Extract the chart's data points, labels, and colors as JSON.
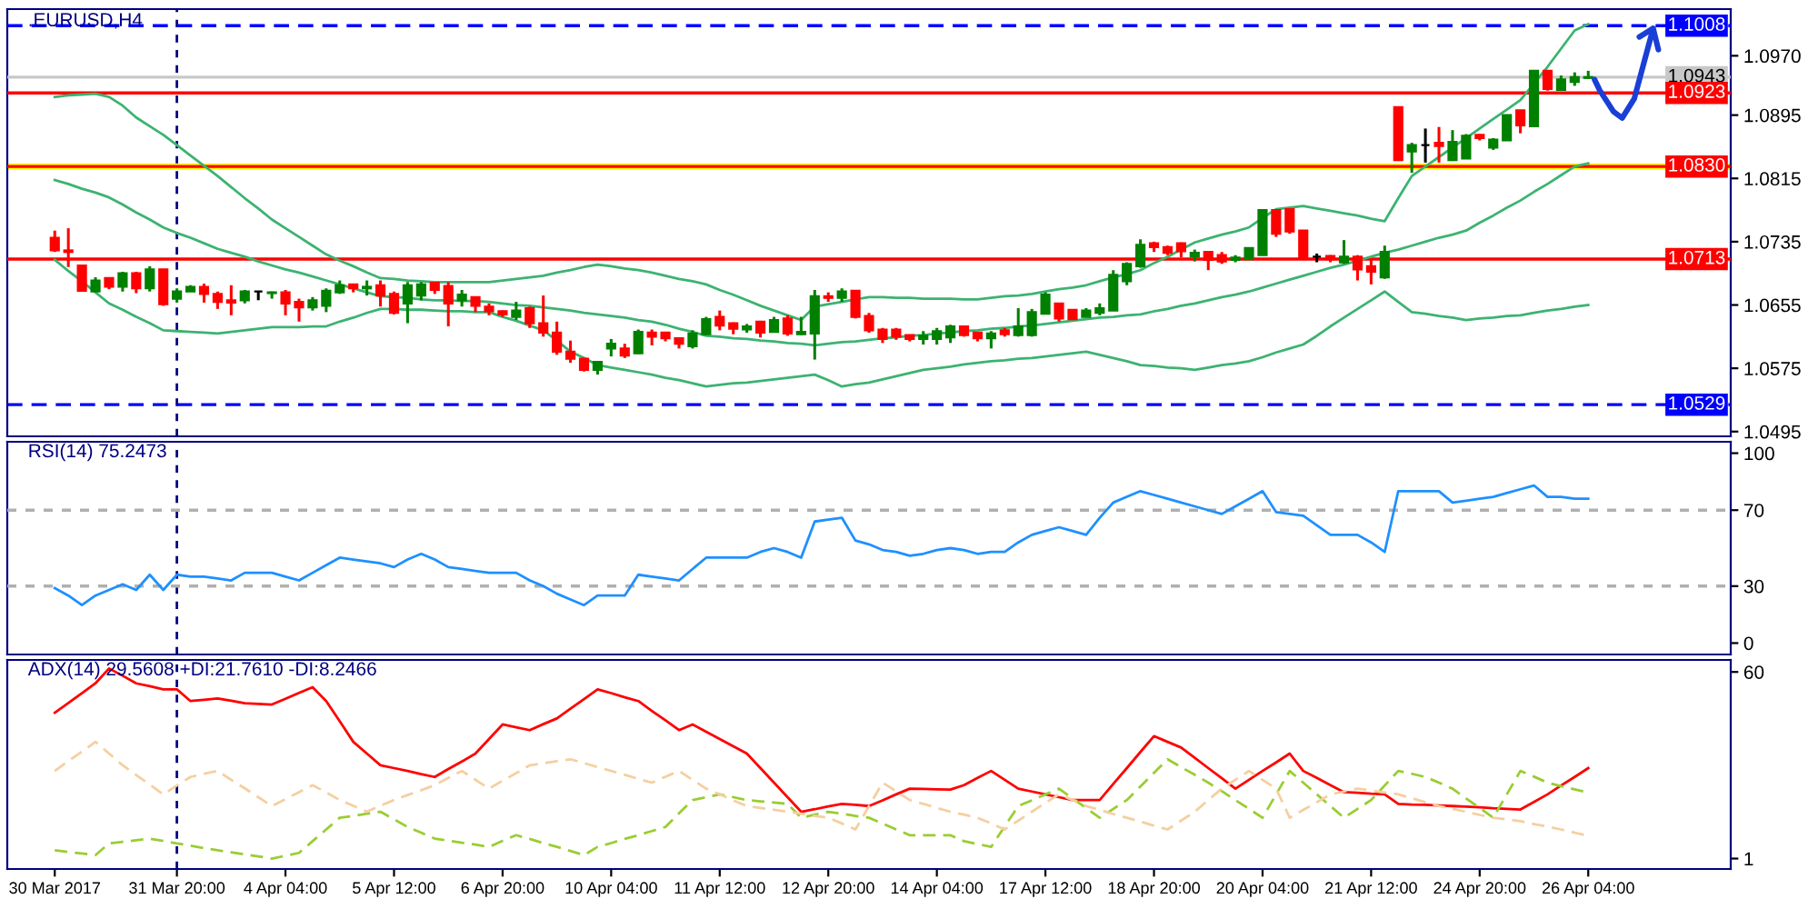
{
  "chart_data": [
    {
      "type": "candlestick",
      "title": ".EURUSD,H4",
      "categories": [
        null,
        null,
        null,
        null,
        null,
        null,
        null,
        null,
        null,
        null,
        null,
        null,
        null,
        null,
        null,
        null,
        null,
        null,
        null,
        null,
        null,
        null,
        null,
        null,
        null,
        null,
        null,
        null,
        null,
        null,
        null,
        null,
        null,
        null,
        null,
        null,
        null,
        null,
        null,
        null,
        null,
        null,
        null,
        null,
        null,
        null,
        null,
        null,
        null,
        null,
        null,
        null,
        null,
        null,
        null,
        null,
        null,
        null,
        null,
        null,
        null,
        null,
        null,
        null,
        null,
        null,
        null,
        null,
        null,
        null,
        null,
        null,
        null,
        null,
        null,
        null,
        null,
        null,
        null,
        null,
        null,
        null,
        null,
        null,
        null,
        null,
        null,
        null,
        null,
        null,
        null,
        null,
        null,
        null,
        null,
        null,
        null,
        null,
        null,
        null,
        null,
        null,
        null,
        null,
        null,
        null,
        null,
        null,
        null,
        null,
        null,
        null,
        null,
        null
      ],
      "ohlc": [
        [
          1.074,
          1.0749,
          1.0722,
          1.0724
        ],
        [
          1.0724,
          1.0752,
          1.0703,
          1.0722
        ],
        [
          1.0705,
          1.0706,
          1.0672,
          1.0673
        ],
        [
          1.0672,
          1.069,
          1.0672,
          1.0686
        ],
        [
          1.0689,
          1.069,
          1.0675,
          1.0678
        ],
        [
          1.0678,
          1.0697,
          1.0672,
          1.0695
        ],
        [
          1.0695,
          1.0697,
          1.067,
          1.0676
        ],
        [
          1.0676,
          1.0704,
          1.0672,
          1.07
        ],
        [
          1.07,
          1.07,
          1.0654,
          1.0656
        ],
        [
          1.0663,
          1.0676,
          1.0658,
          1.0672
        ],
        [
          1.0672,
          1.068,
          1.0672,
          1.0678
        ],
        [
          1.0678,
          1.0682,
          1.0658,
          1.0669
        ],
        [
          1.0669,
          1.0672,
          1.065,
          1.0659
        ],
        [
          1.0661,
          1.068,
          1.0642,
          1.0658
        ],
        [
          1.0661,
          1.0674,
          1.0657,
          1.0672
        ],
        [
          1.0672,
          1.0672,
          1.0661,
          1.0672
        ],
        [
          1.067,
          1.0672,
          1.0663,
          1.0671
        ],
        [
          1.0671,
          1.0674,
          1.0642,
          1.0657
        ],
        [
          1.0659,
          1.0663,
          1.0634,
          1.0652
        ],
        [
          1.0652,
          1.0665,
          1.0648,
          1.0661
        ],
        [
          1.0654,
          1.0676,
          1.0646,
          1.0673
        ],
        [
          1.0671,
          1.0686,
          1.0669,
          1.068
        ],
        [
          1.0681,
          1.0681,
          1.0671,
          1.0676
        ],
        [
          1.0676,
          1.0686,
          1.0667,
          1.0678
        ],
        [
          1.068,
          1.0686,
          1.0653,
          1.0667
        ],
        [
          1.0669,
          1.0672,
          1.0643,
          1.0645
        ],
        [
          1.0657,
          1.0684,
          1.0632,
          1.068
        ],
        [
          1.0667,
          1.0684,
          1.0661,
          1.0681
        ],
        [
          1.0683,
          1.0683,
          1.0669,
          1.0674
        ],
        [
          1.0679,
          1.0684,
          1.0628,
          1.0657
        ],
        [
          1.0661,
          1.0674,
          1.0653,
          1.0668
        ],
        [
          1.0665,
          1.0665,
          1.0646,
          1.0654
        ],
        [
          1.0653,
          1.0657,
          1.0642,
          1.0647
        ],
        [
          1.0647,
          1.0648,
          1.064,
          1.0643
        ],
        [
          1.064,
          1.0659,
          1.0636,
          1.0648
        ],
        [
          1.0651,
          1.0653,
          1.0626,
          1.0632
        ],
        [
          1.0632,
          1.0667,
          1.0615,
          1.062
        ],
        [
          1.062,
          1.0634,
          1.0592,
          1.0596
        ],
        [
          1.0596,
          1.061,
          1.0582,
          1.0587
        ],
        [
          1.0587,
          1.0588,
          1.0571,
          1.0573
        ],
        [
          1.0573,
          1.0584,
          1.0567,
          1.0583
        ],
        [
          1.06,
          1.0612,
          1.059,
          1.0606
        ],
        [
          1.06,
          1.0606,
          1.0588,
          1.0591
        ],
        [
          1.0594,
          1.0624,
          1.0593,
          1.0621
        ],
        [
          1.062,
          1.0624,
          1.0604,
          1.0615
        ],
        [
          1.062,
          1.062,
          1.0609,
          1.0613
        ],
        [
          1.0613,
          1.0613,
          1.06,
          1.0606
        ],
        [
          1.0603,
          1.0623,
          1.06,
          1.0619
        ],
        [
          1.0618,
          1.064,
          1.0617,
          1.0637
        ],
        [
          1.064,
          1.0648,
          1.0623,
          1.0629
        ],
        [
          1.0632,
          1.0633,
          1.0618,
          1.0625
        ],
        [
          1.0624,
          1.0631,
          1.062,
          1.0628
        ],
        [
          1.0634,
          1.0635,
          1.0614,
          1.062
        ],
        [
          1.0621,
          1.064,
          1.062,
          1.0636
        ],
        [
          1.0638,
          1.0642,
          1.0616,
          1.0619
        ],
        [
          1.0618,
          1.064,
          1.0617,
          1.0621
        ],
        [
          1.0619,
          1.0674,
          1.0586,
          1.0666
        ],
        [
          1.0666,
          1.0671,
          1.0659,
          1.0664
        ],
        [
          1.0664,
          1.0676,
          1.0659,
          1.0672
        ],
        [
          1.0673,
          1.0674,
          1.0638,
          1.064
        ],
        [
          1.0641,
          1.0645,
          1.062,
          1.0623
        ],
        [
          1.0624,
          1.0626,
          1.0607,
          1.0612
        ],
        [
          1.0624,
          1.0626,
          1.0611,
          1.0615
        ],
        [
          1.0617,
          1.0617,
          1.0609,
          1.0612
        ],
        [
          1.0612,
          1.0622,
          1.0605,
          1.0616
        ],
        [
          1.0612,
          1.0626,
          1.0605,
          1.0622
        ],
        [
          1.0614,
          1.063,
          1.0607,
          1.0628
        ],
        [
          1.0628,
          1.0628,
          1.0615,
          1.0617
        ],
        [
          1.062,
          1.062,
          1.0609,
          1.0613
        ],
        [
          1.0613,
          1.0622,
          1.06,
          1.0619
        ],
        [
          1.0623,
          1.0626,
          1.0615,
          1.0618
        ],
        [
          1.0617,
          1.0651,
          1.0615,
          1.0628
        ],
        [
          1.0617,
          1.065,
          1.0615,
          1.0646
        ],
        [
          1.0644,
          1.0671,
          1.0643,
          1.0668
        ],
        [
          1.0657,
          1.0657,
          1.0634,
          1.0638
        ],
        [
          1.0649,
          1.0649,
          1.0636,
          1.0637
        ],
        [
          1.064,
          1.0651,
          1.064,
          1.0648
        ],
        [
          1.0645,
          1.0657,
          1.0642,
          1.0651
        ],
        [
          1.0648,
          1.0699,
          1.0648,
          1.0693
        ],
        [
          1.0685,
          1.0709,
          1.068,
          1.0707
        ],
        [
          1.0704,
          1.0738,
          1.0702,
          1.0731
        ],
        [
          1.0733,
          1.0735,
          1.0722,
          1.0728
        ],
        [
          1.0728,
          1.073,
          1.0718,
          1.0721
        ],
        [
          1.0733,
          1.0734,
          1.0715,
          1.0723
        ],
        [
          1.0716,
          1.0725,
          1.071,
          1.0721
        ],
        [
          1.0722,
          1.0722,
          1.0699,
          1.0712
        ],
        [
          1.0718,
          1.0722,
          1.0707,
          1.071
        ],
        [
          1.0712,
          1.0718,
          1.0709,
          1.0715
        ],
        [
          1.0713,
          1.0727,
          1.0712,
          1.0727
        ],
        [
          1.0718,
          1.0776,
          1.0718,
          1.0775
        ],
        [
          1.0775,
          1.0776,
          1.0741,
          1.0745
        ],
        [
          1.0776,
          1.0776,
          1.0745,
          1.0748
        ],
        [
          1.0749,
          1.0749,
          1.0715,
          1.0715
        ],
        [
          1.0716,
          1.072,
          1.0709,
          1.0716
        ],
        [
          1.0717,
          1.0718,
          1.0709,
          1.0713
        ],
        [
          1.0709,
          1.0737,
          1.0707,
          1.0716
        ],
        [
          1.0716,
          1.0718,
          1.0686,
          1.07
        ],
        [
          1.0704,
          1.0712,
          1.0681,
          1.0697
        ],
        [
          1.069,
          1.073,
          1.0688,
          1.0722
        ],
        [
          1.0905,
          1.0905,
          1.0837,
          1.0838
        ],
        [
          1.0849,
          1.086,
          1.0822,
          1.0857
        ],
        [
          1.0857,
          1.0878,
          1.0835,
          1.0857
        ],
        [
          1.086,
          1.088,
          1.0835,
          1.0856
        ],
        [
          1.0838,
          1.0876,
          1.0837,
          1.0861
        ],
        [
          1.084,
          1.0871,
          1.084,
          1.0869
        ],
        [
          1.087,
          1.0871,
          1.0863,
          1.0866
        ],
        [
          1.0854,
          1.0866,
          1.0851,
          1.0864
        ],
        [
          1.0863,
          1.0895,
          1.0863,
          1.0895
        ],
        [
          1.0901,
          1.0901,
          1.0872,
          1.0882
        ],
        [
          1.0881,
          1.0951,
          1.0881,
          1.0951
        ],
        [
          1.0951,
          1.0951,
          1.0926,
          1.0928
        ],
        [
          1.0927,
          1.0945,
          1.0926,
          1.094
        ],
        [
          1.0937,
          1.0949,
          1.0932,
          1.0943
        ],
        [
          1.0942,
          1.0951,
          1.0941,
          1.0943
        ]
      ],
      "colors": [
        "#ff0000",
        "#ff0000",
        "#ff0000",
        "#008000",
        "#ff0000",
        "#008000",
        "#ff0000",
        "#008000",
        "#ff0000",
        "#008000",
        "#008000",
        "#ff0000",
        "#ff0000",
        "#ff0000",
        "#008000",
        "#000000",
        "#008000",
        "#ff0000",
        "#ff0000",
        "#008000",
        "#008000",
        "#008000",
        "#ff0000",
        "#008000",
        "#ff0000",
        "#ff0000",
        "#008000",
        "#008000",
        "#ff0000",
        "#ff0000",
        "#008000",
        "#ff0000",
        "#ff0000",
        "#ff0000",
        "#008000",
        "#ff0000",
        "#ff0000",
        "#ff0000",
        "#ff0000",
        "#ff0000",
        "#008000",
        "#008000",
        "#ff0000",
        "#008000",
        "#ff0000",
        "#ff0000",
        "#ff0000",
        "#008000",
        "#008000",
        "#ff0000",
        "#ff0000",
        "#008000",
        "#ff0000",
        "#008000",
        "#ff0000",
        "#008000",
        "#008000",
        "#ff0000",
        "#008000",
        "#ff0000",
        "#ff0000",
        "#ff0000",
        "#ff0000",
        "#ff0000",
        "#008000",
        "#008000",
        "#008000",
        "#ff0000",
        "#ff0000",
        "#008000",
        "#ff0000",
        "#008000",
        "#008000",
        "#008000",
        "#ff0000",
        "#ff0000",
        "#008000",
        "#008000",
        "#008000",
        "#008000",
        "#008000",
        "#ff0000",
        "#ff0000",
        "#ff0000",
        "#008000",
        "#ff0000",
        "#ff0000",
        "#008000",
        "#008000",
        "#008000",
        "#ff0000",
        "#ff0000",
        "#ff0000",
        "#000000",
        "#ff0000",
        "#008000",
        "#ff0000",
        "#ff0000",
        "#008000",
        "#ff0000",
        "#008000",
        "#000000",
        "#ff0000",
        "#008000",
        "#008000",
        "#ff0000",
        "#008000",
        "#008000",
        "#ff0000",
        "#008000",
        "#ff0000",
        "#008000",
        "#008000",
        "#008000"
      ],
      "series": [
        {
          "type": "line",
          "color": "#3cb371",
          "values": [
            1.0918,
            1.092,
            1.0921,
            1.0922,
            1.0918,
            1.0907,
            1.0892,
            1.0881,
            1.087,
            1.0857,
            1.0844,
            1.0831,
            1.0818,
            1.0804,
            1.079,
            1.0777,
            1.0763,
            1.0752,
            1.0741,
            1.073,
            1.0719,
            1.0711,
            1.0704,
            1.0696,
            1.0689,
            1.0688,
            1.0686,
            1.0685,
            1.0684,
            1.0684,
            1.0684,
            1.0684,
            1.0684,
            1.0686,
            1.0688,
            1.069,
            1.0692,
            1.0696,
            1.0699,
            1.0703,
            1.0706,
            1.0704,
            1.0701,
            1.0699,
            1.0696,
            1.0692,
            1.0688,
            1.0685,
            1.0681,
            1.0674,
            1.0668,
            1.0661,
            1.0654,
            1.0648,
            1.0642,
            1.0636,
            1.0653,
            1.0656,
            1.0659,
            1.0662,
            1.0665,
            1.0665,
            1.0664,
            1.0664,
            1.0663,
            1.0663,
            1.0663,
            1.0662,
            1.0662,
            1.0664,
            1.0666,
            1.0667,
            1.0669,
            1.0672,
            1.0675,
            1.0677,
            1.068,
            1.0685,
            1.069,
            1.0694,
            1.0699,
            1.0708,
            1.0716,
            1.0725,
            1.0734,
            1.0739,
            1.0744,
            1.0748,
            1.0753,
            1.0765,
            1.0776,
            1.0778,
            1.078,
            1.0777,
            1.0774,
            1.0771,
            1.0768,
            1.0764,
            1.0761,
            1.079,
            1.0818,
            1.083,
            1.0842,
            1.0854,
            1.0866,
            1.0878,
            1.089,
            1.0902,
            1.0914,
            1.0935,
            1.0956,
            1.0979,
            1.1002,
            1.101
          ]
        },
        {
          "type": "line",
          "color": "#3cb371",
          "values": [
            1.0813,
            1.0808,
            1.0802,
            1.0797,
            1.0791,
            1.0782,
            1.0772,
            1.0763,
            1.0753,
            1.0746,
            1.074,
            1.0733,
            1.0726,
            1.0721,
            1.0716,
            1.071,
            1.0705,
            1.07,
            1.0696,
            1.0691,
            1.0686,
            1.0681,
            1.0676,
            1.0671,
            1.0666,
            1.0665,
            1.0664,
            1.0662,
            1.0661,
            1.0661,
            1.066,
            1.066,
            1.0659,
            1.0657,
            1.0655,
            1.0654,
            1.0652,
            1.065,
            1.0648,
            1.0645,
            1.0643,
            1.0641,
            1.0639,
            1.0636,
            1.0634,
            1.063,
            1.0625,
            1.0621,
            1.0616,
            1.0615,
            1.0613,
            1.0612,
            1.061,
            1.0609,
            1.0607,
            1.0606,
            1.0604,
            1.0606,
            1.0608,
            1.0609,
            1.0611,
            1.0613,
            1.0614,
            1.0616,
            1.0617,
            1.0619,
            1.062,
            1.0622,
            1.0623,
            1.0625,
            1.0626,
            1.0628,
            1.0629,
            1.0631,
            1.0633,
            1.0635,
            1.0637,
            1.0639,
            1.064,
            1.0642,
            1.0643,
            1.0647,
            1.065,
            1.0654,
            1.0657,
            1.0661,
            1.0665,
            1.0668,
            1.0672,
            1.0677,
            1.0682,
            1.0687,
            1.0692,
            1.0697,
            1.0702,
            1.0706,
            1.0711,
            1.0716,
            1.0721,
            1.0725,
            1.073,
            1.0735,
            1.074,
            1.0744,
            1.0749,
            1.0759,
            1.0768,
            1.0778,
            1.0787,
            1.0798,
            1.0808,
            1.0819,
            1.083,
            1.0834
          ]
        },
        {
          "type": "line",
          "color": "#3cb371",
          "values": [
            1.0712,
            1.0698,
            1.0685,
            1.0671,
            1.0657,
            1.0649,
            1.064,
            1.0632,
            1.0623,
            1.0622,
            1.0621,
            1.062,
            1.0619,
            1.0621,
            1.0623,
            1.0625,
            1.0627,
            1.0627,
            1.0627,
            1.0628,
            1.0628,
            1.0634,
            1.0639,
            1.0645,
            1.065,
            1.065,
            1.0649,
            1.0649,
            1.0648,
            1.0647,
            1.0647,
            1.0646,
            1.0646,
            1.064,
            1.0635,
            1.0629,
            1.0623,
            1.061,
            1.0596,
            1.0588,
            1.0579,
            1.0576,
            1.0573,
            1.057,
            1.0567,
            1.0563,
            1.056,
            1.0556,
            1.0552,
            1.0554,
            1.0556,
            1.0557,
            1.0559,
            1.0561,
            1.0563,
            1.0565,
            1.0567,
            1.056,
            1.0552,
            1.0555,
            1.0557,
            1.0561,
            1.0565,
            1.0569,
            1.0573,
            1.0575,
            1.0577,
            1.058,
            1.0582,
            1.0584,
            1.0585,
            1.0587,
            1.0588,
            1.059,
            1.0592,
            1.0594,
            1.0596,
            1.0592,
            1.0588,
            1.0584,
            1.0579,
            1.0578,
            1.0576,
            1.0575,
            1.0573,
            1.0576,
            1.0579,
            1.0581,
            1.0584,
            1.0589,
            1.0595,
            1.06,
            1.0605,
            1.0616,
            1.0628,
            1.0639,
            1.065,
            1.0661,
            1.0672,
            1.0659,
            1.0646,
            1.0644,
            1.0641,
            1.0639,
            1.0636,
            1.0638,
            1.0639,
            1.0641,
            1.0642,
            1.0645,
            1.0648,
            1.065,
            1.0653,
            1.0655
          ]
        }
      ],
      "ref_lines": [
        {
          "axis": "y",
          "value": 1.1008,
          "label": "1.1008",
          "color": "#0000ff",
          "line_style": "dashed"
        },
        {
          "axis": "y",
          "value": 1.0943,
          "label": "1.0943",
          "color": "#c8c8c8",
          "line_style": "solid"
        },
        {
          "axis": "y",
          "value": 1.0923,
          "label": "1.0923",
          "color": "#ff0000",
          "line_style": "solid"
        },
        {
          "axis": "y",
          "value": 1.083,
          "label": "1.0830",
          "color": "#ff0000",
          "line_style": "solid"
        },
        {
          "axis": "y",
          "value": 1.0713,
          "label": "1.0713",
          "color": "#ff0000",
          "line_style": "solid"
        },
        {
          "axis": "y",
          "value": 1.0529,
          "label": "1.0529",
          "color": "#0000ff",
          "line_style": "dashed"
        }
      ],
      "bands": [
        {
          "axis": "y",
          "from": 1.0826,
          "to": 1.0834,
          "color": "#ffff00"
        }
      ],
      "ylim": [
        1.0489,
        1.1029
      ],
      "yticks": [
        {
          "value": 1.0495,
          "label": "1.0495"
        },
        {
          "value": 1.0575,
          "label": "1.0575"
        },
        {
          "value": 1.0655,
          "label": "1.0655"
        },
        {
          "value": 1.0735,
          "label": "1.0735"
        },
        {
          "value": 1.0815,
          "label": "1.0815"
        },
        {
          "value": 1.0895,
          "label": "1.0895"
        },
        {
          "value": 1.097,
          "label": "1.0970"
        }
      ],
      "tick_labels": "y",
      "grid": false
    },
    {
      "type": "line",
      "title": "RSI(14) 75.2473",
      "categories": [
        null,
        null,
        null,
        null,
        null,
        null,
        null,
        null,
        null,
        null,
        null,
        null,
        null,
        null,
        null,
        null,
        null,
        null,
        null,
        null,
        null,
        null,
        null,
        null,
        null,
        null,
        null,
        null,
        null,
        null,
        null,
        null,
        null,
        null,
        null,
        null,
        null,
        null,
        null,
        null,
        null,
        null,
        null,
        null,
        null,
        null,
        null,
        null,
        null,
        null,
        null,
        null,
        null,
        null,
        null,
        null,
        null,
        null,
        null,
        null,
        null,
        null,
        null,
        null,
        null,
        null,
        null,
        null,
        null,
        null,
        null,
        null,
        null,
        null,
        null,
        null,
        null,
        null,
        null,
        null,
        null,
        null,
        null,
        null,
        null,
        null,
        null,
        null,
        null,
        null,
        null,
        null,
        null,
        null,
        null,
        null,
        null,
        null,
        null,
        null,
        null,
        null,
        null,
        null,
        null,
        null,
        null,
        null,
        null,
        null,
        null,
        null,
        null,
        null
      ],
      "series": [
        {
          "color": "#1e90ff",
          "values": [
            29,
            25,
            20,
            25,
            28,
            31,
            28,
            36,
            28,
            36,
            35,
            35,
            34,
            33,
            37,
            37,
            37,
            35,
            33,
            37,
            41,
            45,
            44,
            43,
            42,
            40,
            44,
            47,
            44,
            40,
            39,
            38,
            37,
            37,
            37,
            33,
            30,
            26,
            23,
            20,
            25,
            25,
            25,
            36,
            35,
            34,
            33,
            39,
            45,
            45,
            45,
            45,
            48,
            50,
            48,
            45,
            64,
            65,
            66,
            54,
            52,
            49,
            48,
            46,
            47,
            49,
            50,
            49,
            47,
            48,
            48,
            53,
            57,
            59,
            61,
            59,
            57,
            66,
            74,
            77,
            80,
            78,
            76,
            74,
            72,
            70,
            68,
            72,
            76,
            80,
            69,
            68,
            67,
            62,
            57,
            57,
            57,
            53,
            48,
            80,
            80,
            80,
            80,
            74,
            75,
            76,
            77,
            79,
            81,
            83,
            77,
            77,
            76,
            76
          ]
        }
      ],
      "ref_lines": [
        {
          "axis": "y",
          "value": 30,
          "color": "#b0b0b0",
          "line_style": "dotted"
        },
        {
          "axis": "y",
          "value": 70,
          "color": "#b0b0b0",
          "line_style": "dotted"
        }
      ],
      "ylim": [
        -6,
        106
      ],
      "yticks": [
        0,
        30,
        70,
        100
      ],
      "tick_labels": "y",
      "grid": false
    },
    {
      "type": "line",
      "title": "ADX(14) 29.5608 +DI:21.7610 -DI:8.2466",
      "series": [
        {
          "color": "#ff0000",
          "line_style": "solid",
          "values": [
            47.1,
            50.2,
            53.3,
            56.4,
            61.1,
            58.8,
            56.4,
            55.5,
            54.5,
            54.5,
            50.8,
            51.2,
            51.6,
            50.9,
            50.1,
            49.9,
            49.7,
            51.5,
            53.4,
            55.2,
            50.8,
            44.4,
            37.9,
            34.2,
            30.5,
            29.6,
            28.7,
            27.7,
            26.8,
            29.3,
            31.7,
            34.2,
            38.8,
            43.4,
            42.5,
            41.6,
            43.5,
            45.3,
            48.4,
            51.4,
            54.5,
            53.3,
            52.0,
            50.8,
            47.7,
            44.7,
            41.6,
            43.4,
            41.1,
            38.8,
            36.5,
            34.2,
            29.6,
            25.0,
            20.4,
            15.8,
            16.6,
            17.5,
            18.3,
            18.0,
            17.6,
            19.4,
            21.3,
            23.1,
            23.0,
            22.9,
            22.8,
            24.2,
            26.5,
            28.7,
            25.9,
            23.1,
            22.2,
            21.3,
            20.4,
            19.5,
            19.5,
            19.5,
            24.6,
            29.6,
            34.7,
            39.7,
            37.9,
            36.1,
            32.9,
            29.6,
            26.4,
            23.1,
            25.9,
            28.7,
            31.4,
            34.2,
            28.7,
            26.5,
            24.2,
            22.0,
            21.8,
            21.5,
            21.3,
            18.3,
            18.1,
            18.0,
            17.8,
            17.6,
            17.4,
            17.2,
            16.9,
            16.7,
            16.5,
            18.9,
            21.3,
            24.1,
            26.8,
            29.6
          ]
        },
        {
          "color": "#9acd32",
          "line_style": "dashed",
          "values": [
            3.6,
            3.1,
            2.6,
            2.1,
            5.8,
            6.3,
            6.8,
            7.3,
            6.6,
            5.8,
            5.1,
            4.3,
            3.6,
            3.0,
            2.3,
            1.7,
            1.0,
            1.9,
            2.8,
            6.5,
            10.2,
            13.9,
            14.5,
            15.2,
            15.8,
            13.4,
            11.0,
            9.2,
            7.3,
            6.7,
            6.0,
            5.4,
            4.7,
            6.6,
            8.4,
            7.2,
            5.9,
            4.7,
            3.4,
            2.1,
            4.7,
            5.9,
            7.2,
            8.4,
            9.7,
            11.0,
            15.3,
            19.5,
            20.4,
            21.3,
            20.4,
            19.5,
            19.1,
            18.7,
            18.3,
            13.9,
            14.9,
            15.8,
            15.2,
            14.5,
            13.9,
            12.1,
            10.2,
            8.4,
            8.4,
            8.4,
            8.4,
            6.5,
            5.6,
            4.7,
            11.2,
            17.6,
            19.4,
            21.3,
            23.1,
            20.0,
            17.0,
            13.9,
            16.7,
            19.5,
            23.8,
            28.1,
            32.4,
            29.9,
            27.5,
            25.0,
            22.3,
            19.5,
            16.7,
            13.9,
            21.3,
            28.7,
            25.0,
            21.3,
            17.6,
            13.9,
            16.7,
            19.5,
            24.1,
            28.7,
            27.8,
            26.8,
            25.0,
            23.1,
            20.0,
            17.0,
            13.9,
            21.3,
            28.7,
            26.9,
            25.0,
            23.9,
            22.9,
            21.8
          ]
        },
        {
          "color": "#f5cfa0",
          "line_style": "dashed",
          "values": [
            28.7,
            31.8,
            34.8,
            37.9,
            34.2,
            30.5,
            27.4,
            24.4,
            21.3,
            24.1,
            26.8,
            27.8,
            28.7,
            25.9,
            23.2,
            20.4,
            17.6,
            19.8,
            22.0,
            24.2,
            21.9,
            19.5,
            17.7,
            15.8,
            17.7,
            19.5,
            21.1,
            22.6,
            24.2,
            26.5,
            28.7,
            25.9,
            23.1,
            25.6,
            28.0,
            30.5,
            31.1,
            31.8,
            32.4,
            31.2,
            29.9,
            28.7,
            27.5,
            26.2,
            25.0,
            26.9,
            28.7,
            25.9,
            23.1,
            21.3,
            19.4,
            17.6,
            17.0,
            16.4,
            15.8,
            15.2,
            14.5,
            13.9,
            12.1,
            10.2,
            17.6,
            25.0,
            22.3,
            19.5,
            18.3,
            17.0,
            15.8,
            14.9,
            13.9,
            12.1,
            10.2,
            13.0,
            15.8,
            18.6,
            21.3,
            19.5,
            17.6,
            16.4,
            15.1,
            13.9,
            12.7,
            11.4,
            10.2,
            13.0,
            15.8,
            19.5,
            23.1,
            25.9,
            28.7,
            25.9,
            23.1,
            13.9,
            16.4,
            18.8,
            21.3,
            22.2,
            23.1,
            22.5,
            21.9,
            21.3,
            20.1,
            18.8,
            17.6,
            16.7,
            15.8,
            14.8,
            13.9,
            13.4,
            12.8,
            11.9,
            11.1,
            10.2,
            9.2,
            8.2
          ]
        }
      ],
      "ref_lines": [
        {
          "axis": "x",
          "value": "31 Mar 20:00",
          "color": "#000080",
          "line_style": "dotted"
        }
      ],
      "categories": [
        "30 Mar 2017",
        null,
        null,
        null,
        null,
        null,
        null,
        null,
        null,
        "31 Mar 20:00",
        null,
        null,
        null,
        null,
        null,
        null,
        null,
        "4 Apr 04:00",
        null,
        null,
        null,
        null,
        null,
        null,
        null,
        "5 Apr 12:00",
        null,
        null,
        null,
        null,
        null,
        null,
        null,
        "6 Apr 20:00",
        null,
        null,
        null,
        null,
        null,
        null,
        null,
        "10 Apr 04:00",
        null,
        null,
        null,
        null,
        null,
        null,
        null,
        "11 Apr 12:00",
        null,
        null,
        null,
        null,
        null,
        null,
        null,
        "12 Apr 20:00",
        null,
        null,
        null,
        null,
        null,
        null,
        null,
        "14 Apr 04:00",
        null,
        null,
        null,
        null,
        null,
        null,
        null,
        "17 Apr 12:00",
        null,
        null,
        null,
        null,
        null,
        null,
        null,
        "18 Apr 20:00",
        null,
        null,
        null,
        null,
        null,
        null,
        null,
        "20 Apr 04:00",
        null,
        null,
        null,
        null,
        null,
        null,
        null,
        "21 Apr 12:00",
        null,
        null,
        null,
        null,
        null,
        null,
        null,
        "24 Apr 20:00",
        null,
        null,
        null,
        null,
        null,
        null,
        null,
        "26 Apr 04:00"
      ],
      "ylim": [
        -2.3,
        63.8
      ],
      "yticks": [
        1,
        60
      ],
      "grid": false
    }
  ]
}
